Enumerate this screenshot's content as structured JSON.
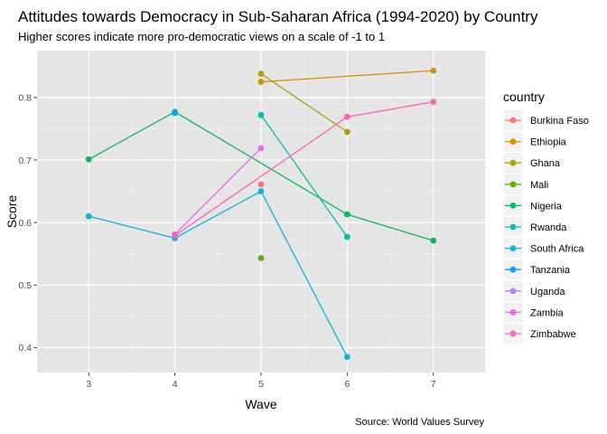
{
  "chart_data": {
    "type": "line",
    "title": "Attitudes towards Democracy in Sub-Saharan Africa (1994-2020) by Country",
    "subtitle": "Higher scores indicate more pro-democratic views on a scale of -1 to 1",
    "xlabel": "Wave",
    "ylabel": "Score",
    "caption": "Source: World Values Survey",
    "legend_title": "country",
    "legend_position": "right",
    "grid": true,
    "xlim": [
      2.4,
      7.6
    ],
    "ylim": [
      0.36,
      0.875
    ],
    "xticks": [
      3,
      4,
      5,
      6,
      7
    ],
    "yticks": [
      0.4,
      0.5,
      0.6,
      0.7,
      0.8
    ],
    "ytick_labels": [
      "0.4",
      "0.5",
      "0.6",
      "0.7",
      "0.8"
    ],
    "background": "#e5e5e5",
    "series": [
      {
        "name": "Burkina Faso",
        "color": "#f8766d",
        "points": [
          [
            5,
            0.661
          ]
        ]
      },
      {
        "name": "Ethiopia",
        "color": "#db8e00",
        "points": [
          [
            5,
            0.825
          ],
          [
            7,
            0.843
          ]
        ]
      },
      {
        "name": "Ghana",
        "color": "#aea200",
        "points": [
          [
            5,
            0.838
          ],
          [
            6,
            0.745
          ]
        ]
      },
      {
        "name": "Mali",
        "color": "#64b200",
        "points": [
          [
            5,
            0.543
          ]
        ]
      },
      {
        "name": "Nigeria",
        "color": "#00bd5c",
        "points": [
          [
            3,
            0.701
          ],
          [
            4,
            0.777
          ],
          [
            6,
            0.613
          ],
          [
            7,
            0.571
          ]
        ]
      },
      {
        "name": "Rwanda",
        "color": "#00c1a7",
        "points": [
          [
            5,
            0.772
          ],
          [
            6,
            0.577
          ]
        ]
      },
      {
        "name": "South Africa",
        "color": "#00bade",
        "points": [
          [
            3,
            0.61
          ],
          [
            4,
            0.575
          ],
          [
            5,
            0.65
          ],
          [
            6,
            0.385
          ]
        ]
      },
      {
        "name": "Tanzania",
        "color": "#00a6ff",
        "points": [
          [
            4,
            0.775
          ]
        ]
      },
      {
        "name": "Uganda",
        "color": "#b385ff",
        "points": []
      },
      {
        "name": "Zambia",
        "color": "#ef67eb",
        "points": [
          [
            4,
            0.581
          ],
          [
            5,
            0.719
          ]
        ]
      },
      {
        "name": "Zimbabwe",
        "color": "#ff63b6",
        "points": [
          [
            4,
            0.579
          ],
          [
            6,
            0.769
          ],
          [
            7,
            0.793
          ]
        ]
      }
    ]
  }
}
